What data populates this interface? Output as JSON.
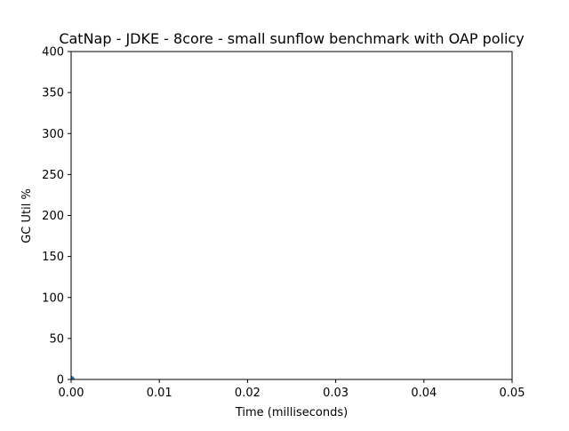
{
  "chart_data": {
    "type": "scatter",
    "title": "CatNap - JDKE - 8core -  small sunflow benchmark with OAP policy",
    "xlabel": "Time (milliseconds)",
    "ylabel": "GC Util %",
    "xlim": [
      0,
      0.05
    ],
    "ylim": [
      0,
      400
    ],
    "x_ticks": [
      "0.00",
      "0.01",
      "0.02",
      "0.03",
      "0.04",
      "0.05"
    ],
    "y_ticks": [
      "0",
      "50",
      "100",
      "150",
      "200",
      "250",
      "300",
      "350",
      "400"
    ],
    "grid": false,
    "legend": "none",
    "series": [
      {
        "color": "#1f77b4",
        "points": [
          {
            "x": 0,
            "y": 0
          }
        ]
      }
    ]
  }
}
